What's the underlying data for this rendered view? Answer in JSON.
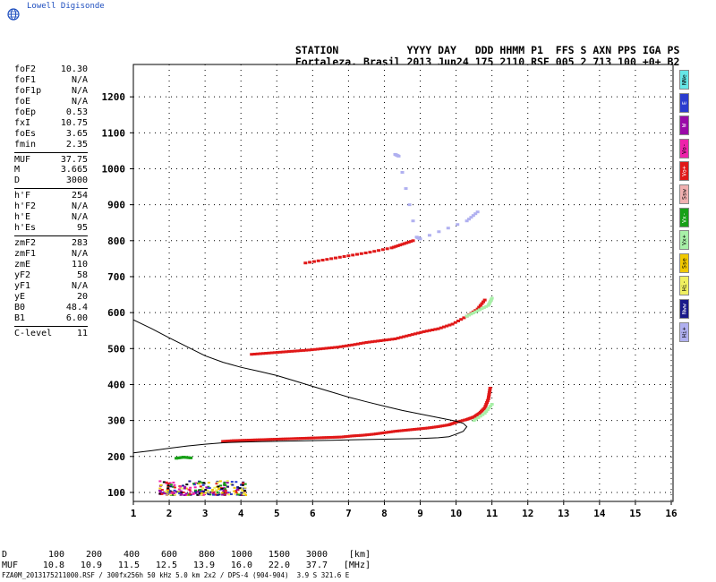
{
  "brand": {
    "text": "Lowell Digisonde"
  },
  "header": {
    "labels": [
      "STATION",
      "YYYY",
      "DAY",
      "DDD",
      "HHMM",
      "P1",
      "FFS",
      "S",
      "AXN",
      "PPS",
      "IGA",
      "PS"
    ],
    "values": [
      "Fortaleza, Brasil",
      "2013",
      "Jun24",
      "175",
      "2110",
      "RSF",
      "005",
      "2",
      "713",
      "100",
      "+0+",
      "B2"
    ]
  },
  "params": [
    {
      "name": "foF2",
      "value": "10.30"
    },
    {
      "name": "foF1",
      "value": "N/A"
    },
    {
      "name": "foF1p",
      "value": "N/A"
    },
    {
      "name": "foE",
      "value": "N/A"
    },
    {
      "name": "foEp",
      "value": "0.53"
    },
    {
      "name": "fxI",
      "value": "10.75"
    },
    {
      "name": "foEs",
      "value": "3.65"
    },
    {
      "name": "fmin",
      "value": "2.35"
    },
    {
      "sep": true
    },
    {
      "name": "MUF",
      "value": "37.75"
    },
    {
      "name": "M",
      "value": "3.665"
    },
    {
      "name": "D",
      "value": "3000"
    },
    {
      "sep": true
    },
    {
      "name": "h'F",
      "value": "254"
    },
    {
      "name": "h'F2",
      "value": "N/A"
    },
    {
      "name": "h'E",
      "value": "N/A"
    },
    {
      "name": "h'Es",
      "value": "95"
    },
    {
      "sep": true
    },
    {
      "name": "zmF2",
      "value": "283"
    },
    {
      "name": "zmF1",
      "value": "N/A"
    },
    {
      "name": "zmE",
      "value": "110"
    },
    {
      "name": "yF2",
      "value": "58"
    },
    {
      "name": "yF1",
      "value": "N/A"
    },
    {
      "name": "yE",
      "value": "20"
    },
    {
      "name": "B0",
      "value": "48.4"
    },
    {
      "name": "B1",
      "value": "6.00"
    },
    {
      "sep": true
    },
    {
      "name": "C-level",
      "value": "11"
    }
  ],
  "legend": [
    {
      "label": "NNe",
      "color": "#66e6e6"
    },
    {
      "label": "E",
      "color": "#2a3ccf"
    },
    {
      "label": "W",
      "color": "#9a0aa8"
    },
    {
      "label": "Vo-",
      "color": "#ee22aa"
    },
    {
      "label": "Vo+",
      "color": "#e01818"
    },
    {
      "label": "Ssw",
      "color": "#f0b0b0"
    },
    {
      "label": "Vx-",
      "color": "#17a017"
    },
    {
      "label": "Vx+",
      "color": "#a8f0a8"
    },
    {
      "label": "Sse",
      "color": "#f0c800"
    },
    {
      "label": "Hi-",
      "color": "#f0f060"
    },
    {
      "label": "Nww",
      "color": "#1a1a8a"
    },
    {
      "label": "Hi+",
      "color": "#b0b0f0"
    }
  ],
  "muf_table": {
    "row1": [
      "D",
      "100",
      "200",
      "400",
      "600",
      "800",
      "1000",
      "1500",
      "3000",
      "[km]"
    ],
    "row2": [
      "MUF",
      "10.8",
      "10.9",
      "11.5",
      "12.5",
      "13.9",
      "16.0",
      "22.0",
      "37.7",
      "[MHz]"
    ]
  },
  "footer": "FZA0M_2013175211000.RSF / 300fx256h 50 kHz 5.0 km 2x2 / DPS-4 (904-904)  3.9 S 321.6 E",
  "chart_data": {
    "type": "scatter",
    "title": "",
    "xlabel": "",
    "ylabel": "",
    "xlim": [
      1,
      16.05
    ],
    "ylim": [
      75,
      1290
    ],
    "xticks": [
      1,
      2,
      3,
      4,
      5,
      6,
      7,
      8,
      9,
      10,
      11,
      12,
      13,
      14,
      15,
      16
    ],
    "yticks": [
      100,
      200,
      300,
      400,
      500,
      600,
      700,
      800,
      900,
      1000,
      1100,
      1200
    ],
    "grid": true,
    "series": [
      {
        "color": "#e01818",
        "x": [
          3.5,
          3.8,
          4.1,
          4.4,
          4.7,
          5.0,
          5.3,
          5.6,
          5.9,
          6.2,
          6.5,
          6.8,
          7.1,
          7.4,
          7.7,
          8.0,
          8.3,
          8.6,
          8.9,
          9.2,
          9.5,
          9.8,
          10.0,
          10.3,
          10.5,
          10.65,
          10.8,
          10.9,
          10.95
        ],
        "y": [
          242,
          244,
          245,
          246,
          247,
          248,
          249,
          250,
          251,
          252,
          253,
          254,
          257,
          259,
          262,
          266,
          270,
          273,
          276,
          279,
          283,
          288,
          295,
          303,
          310,
          320,
          335,
          360,
          390
        ]
      },
      {
        "color": "#e01818",
        "x": [
          4.3,
          4.7,
          5.1,
          5.5,
          5.9,
          6.3,
          6.7,
          7.1,
          7.5,
          7.9,
          8.3,
          8.7,
          9.1,
          9.5,
          9.9,
          10.3,
          10.6,
          10.8
        ],
        "y": [
          484,
          487,
          490,
          493,
          496,
          500,
          504,
          510,
          517,
          522,
          527,
          537,
          547,
          555,
          568,
          590,
          610,
          635
        ]
      },
      {
        "color": "#e01818",
        "x": [
          5.8,
          6.4,
          7.0,
          7.6,
          8.2,
          8.5,
          8.8
        ],
        "y": [
          738,
          748,
          758,
          768,
          780,
          790,
          800
        ]
      },
      {
        "color": "#a8f0a8",
        "x": [
          10.3,
          10.6,
          10.9,
          11.0
        ],
        "y": [
          590,
          605,
          620,
          640
        ]
      },
      {
        "color": "#a8f0a8",
        "x": [
          10.5,
          10.8,
          11.0
        ],
        "y": [
          300,
          320,
          345
        ]
      },
      {
        "color": "#b0b0f0",
        "x": [
          8.3,
          8.4,
          8.9,
          9.0,
          10.3,
          10.6
        ],
        "y": [
          1040,
          1035,
          810,
          805,
          855,
          880
        ]
      },
      {
        "color": "#17a017",
        "x": [
          2.2,
          2.4,
          2.6
        ],
        "y": [
          195,
          198,
          196
        ]
      }
    ],
    "es_region": {
      "x_range": [
        1.7,
        4.1
      ],
      "y_range": [
        95,
        135
      ]
    },
    "model_profile": {
      "x": [
        1.0,
        1.5,
        2.0,
        2.5,
        3.0,
        3.5,
        4.0,
        4.5,
        5.0,
        5.5,
        6.0,
        6.5,
        7.0,
        7.5,
        8.0,
        8.5,
        9.0,
        9.5,
        9.8,
        10.0,
        10.2,
        10.3,
        10.2,
        10.0,
        9.5,
        9.0,
        8.5,
        8.0,
        7.5,
        7.0,
        6.5,
        6.0,
        5.5,
        5.0,
        4.5,
        4.0,
        3.5,
        3.0,
        2.5,
        2.0,
        1.5,
        1.0
      ],
      "y": [
        210,
        216,
        223,
        229,
        234,
        238,
        240,
        241,
        242,
        243,
        244,
        245,
        246,
        247,
        248,
        249,
        250,
        252,
        255,
        262,
        270,
        283,
        292,
        298,
        308,
        318,
        328,
        340,
        352,
        365,
        380,
        395,
        410,
        425,
        437,
        448,
        462,
        480,
        505,
        530,
        556,
        580
      ]
    }
  }
}
